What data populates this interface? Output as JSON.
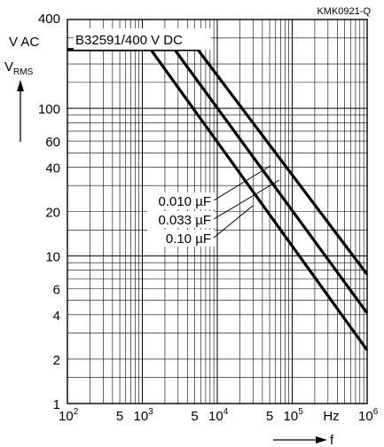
{
  "chart_data": {
    "type": "line",
    "doc_id": "KMK0921-Q",
    "title": "B32591/400 V DC",
    "ylabel": "V",
    "ylabel_sub": "RMS",
    "yunit": "V AC",
    "xlabel": "f",
    "xunit": "Hz",
    "x_scale": "log",
    "y_scale": "log",
    "xlim": [
      100,
      1000000
    ],
    "ylim": [
      1,
      400
    ],
    "grid": true,
    "y_ticks": [
      "1",
      "2",
      "4",
      "6",
      "10",
      "20",
      "40",
      "60",
      "100"
    ],
    "x_ticks": [
      {
        "base": "10",
        "exp": "2"
      },
      {
        "base": "5",
        "exp": ""
      },
      {
        "base": "10",
        "exp": "3"
      },
      {
        "base": "5",
        "exp": ""
      },
      {
        "base": "10",
        "exp": "4"
      },
      {
        "base": "5",
        "exp": ""
      },
      {
        "base": "10",
        "exp": "5"
      },
      {
        "base": "10",
        "exp": "6"
      }
    ],
    "y_top_tick": "400",
    "series": [
      {
        "name": "0.010 µF",
        "points": [
          [
            100,
            250
          ],
          [
            5500,
            250
          ],
          [
            1000000,
            7.5
          ]
        ]
      },
      {
        "name": "0.033 µF",
        "points": [
          [
            100,
            250
          ],
          [
            2700,
            250
          ],
          [
            1000000,
            4.1
          ]
        ]
      },
      {
        "name": "0.10 µF",
        "points": [
          [
            100,
            250
          ],
          [
            1300,
            250
          ],
          [
            1000000,
            2.3
          ]
        ]
      }
    ]
  }
}
